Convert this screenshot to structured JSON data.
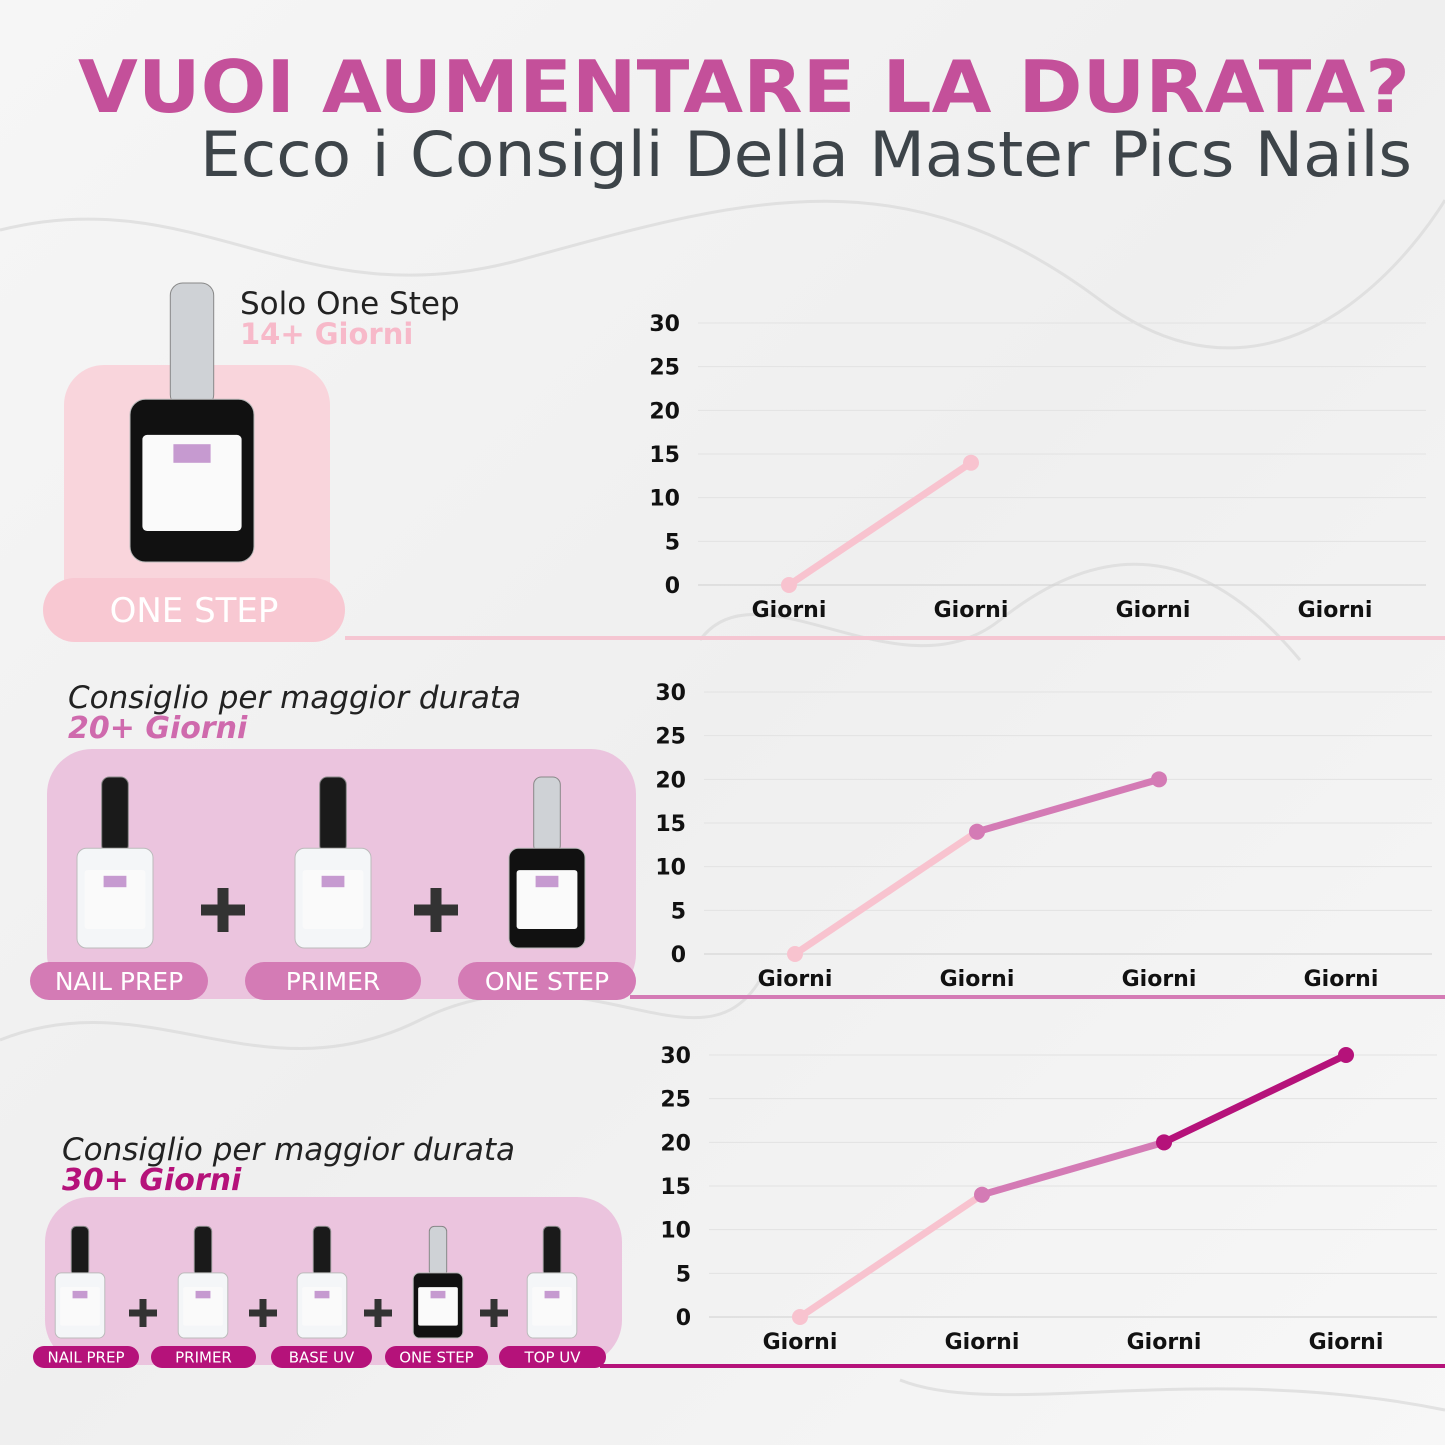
{
  "header": {
    "title": "VUOI AUMENTARE LA DURATA?",
    "subtitle": "Ecco i Consigli Della Master Pics Nails"
  },
  "sections": [
    {
      "heading": "Solo One Step",
      "duration": "14+ Giorni",
      "products": [
        "ONE STEP"
      ]
    },
    {
      "heading": "Consiglio per maggior durata",
      "duration": "20+ Giorni",
      "products": [
        "NAIL PREP",
        "PRIMER",
        "ONE STEP"
      ]
    },
    {
      "heading": "Consiglio per maggior durata",
      "duration": "30+ Giorni",
      "products": [
        "NAIL PREP",
        "PRIMER",
        "BASE UV",
        "ONE STEP",
        "TOP UV"
      ]
    }
  ],
  "chart_data": [
    {
      "type": "line",
      "categories": [
        "Giorni",
        "Giorni",
        "Giorni",
        "Giorni"
      ],
      "series": [
        {
          "color": "#f8c3cf",
          "values": [
            0,
            14,
            null,
            null
          ]
        }
      ],
      "ylim": [
        0,
        30
      ],
      "yticks": [
        0,
        5,
        10,
        15,
        20,
        25,
        30
      ],
      "grid": true
    },
    {
      "type": "line",
      "categories": [
        "Giorni",
        "Giorni",
        "Giorni",
        "Giorni"
      ],
      "series": [
        {
          "color": "#f8c3cf",
          "values": [
            0,
            14,
            null,
            null
          ]
        },
        {
          "color": "#d47bb5",
          "values": [
            null,
            14,
            20,
            null
          ]
        }
      ],
      "ylim": [
        0,
        30
      ],
      "yticks": [
        0,
        5,
        10,
        15,
        20,
        25,
        30
      ],
      "grid": true
    },
    {
      "type": "line",
      "categories": [
        "Giorni",
        "Giorni",
        "Giorni",
        "Giorni"
      ],
      "series": [
        {
          "color": "#f8c3cf",
          "values": [
            0,
            14,
            null,
            null
          ]
        },
        {
          "color": "#d47bb5",
          "values": [
            null,
            14,
            20,
            null
          ]
        },
        {
          "color": "#b5127a",
          "values": [
            null,
            null,
            20,
            30
          ]
        }
      ],
      "ylim": [
        0,
        30
      ],
      "yticks": [
        0,
        5,
        10,
        15,
        20,
        25,
        30
      ],
      "grid": true
    }
  ]
}
